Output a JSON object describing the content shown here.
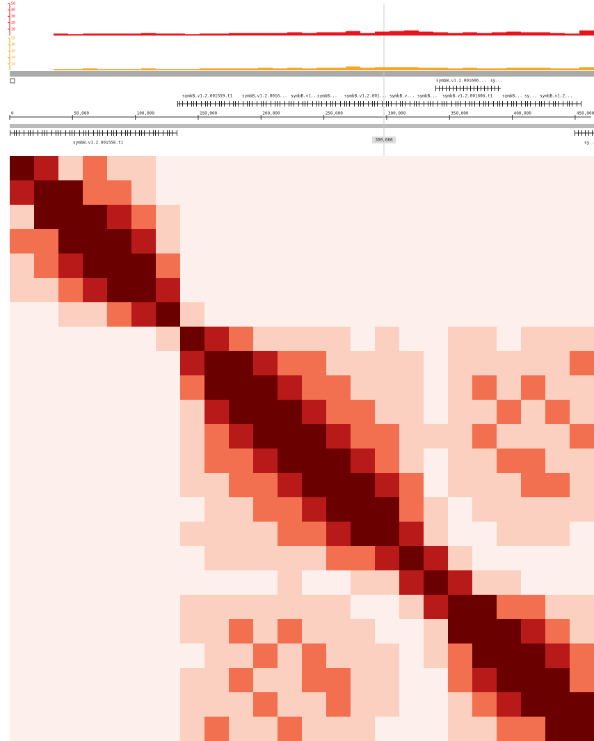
{
  "tracks": [
    {
      "name": "coverage-red",
      "color": "#e8141c",
      "ylim": [
        0,
        50
      ],
      "yticks": [
        50,
        40,
        30,
        20,
        10
      ],
      "values": [
        0,
        0,
        0,
        3,
        2,
        3,
        3,
        3,
        3,
        4,
        3,
        3,
        2,
        3,
        3,
        4,
        4,
        4,
        4,
        5,
        4,
        5,
        5,
        7,
        4,
        6,
        7,
        8,
        6,
        5,
        4,
        5,
        4,
        5,
        6,
        5,
        5,
        4,
        3,
        8
      ]
    },
    {
      "name": "coverage-orange",
      "color": "#f5a623",
      "ylim": [
        0,
        50
      ],
      "yticks": [
        50,
        40,
        30,
        20,
        10
      ],
      "values": [
        0,
        0,
        0,
        2,
        2,
        3,
        2,
        2,
        2,
        3,
        2,
        2,
        2,
        3,
        3,
        3,
        3,
        4,
        3,
        4,
        3,
        4,
        4,
        6,
        4,
        5,
        5,
        5,
        4,
        4,
        3,
        4,
        3,
        3,
        4,
        4,
        4,
        3,
        3,
        5
      ]
    }
  ],
  "genes_top": [
    "symbB.v1.2.001606...",
    "sy..."
  ],
  "genes_mid": [
    "symbB.v1.2.001559.t1",
    "symbB.v1.2.0016...",
    "symbB.v1...",
    "symbB...",
    "symbB.v1.2.001...",
    "symbB.v...",
    "symbB...",
    "symbB.v1.2.001606.t1",
    "symbB...",
    "sy...",
    "symbB.v1.2..."
  ],
  "genes_bottom": [
    "symbB.v1.2.001558.t1",
    "sy..."
  ],
  "cursor": "300,666",
  "ruler": {
    "xlim": [
      0,
      465000
    ],
    "xticks": [
      0,
      {
        "value": 50000,
        "label": "50,000"
      },
      {
        "value": 100000,
        "label": "100,000"
      },
      {
        "value": 150000,
        "label": "150,000"
      },
      {
        "value": 200000,
        "label": "200,000"
      },
      {
        "value": 250000,
        "label": "250,000"
      },
      {
        "value": 300000,
        "label": "300,000"
      },
      {
        "value": 350000,
        "label": "350,000"
      },
      {
        "value": 400000,
        "label": "400,000"
      },
      {
        "value": 450000,
        "label": "450,000"
      }
    ]
  },
  "heatmap": {
    "colors": [
      "#fdf0ec",
      "#fcd0c0",
      "#f2704f",
      "#b81a1a",
      "#6b0000"
    ],
    "matrix": [
      [
        4,
        3,
        1,
        2,
        1,
        1,
        0,
        0,
        0,
        0,
        0,
        0,
        0,
        0,
        0,
        0,
        0,
        0,
        0,
        0,
        0,
        0,
        0,
        0
      ],
      [
        3,
        4,
        4,
        2,
        2,
        1,
        0,
        0,
        0,
        0,
        0,
        0,
        0,
        0,
        0,
        0,
        0,
        0,
        0,
        0,
        0,
        0,
        0,
        0
      ],
      [
        1,
        4,
        4,
        4,
        3,
        2,
        1,
        0,
        0,
        0,
        0,
        0,
        0,
        0,
        0,
        0,
        0,
        0,
        0,
        0,
        0,
        0,
        0,
        0
      ],
      [
        2,
        2,
        4,
        4,
        4,
        3,
        1,
        0,
        0,
        0,
        0,
        0,
        0,
        0,
        0,
        0,
        0,
        0,
        0,
        0,
        0,
        0,
        0,
        0
      ],
      [
        1,
        2,
        3,
        4,
        4,
        4,
        2,
        0,
        0,
        0,
        0,
        0,
        0,
        0,
        0,
        0,
        0,
        0,
        0,
        0,
        0,
        0,
        0,
        0
      ],
      [
        1,
        1,
        2,
        3,
        4,
        4,
        3,
        0,
        0,
        0,
        0,
        0,
        0,
        0,
        0,
        0,
        0,
        0,
        0,
        0,
        0,
        0,
        0,
        0
      ],
      [
        0,
        0,
        1,
        1,
        2,
        3,
        4,
        1,
        0,
        0,
        0,
        0,
        0,
        0,
        0,
        0,
        0,
        0,
        0,
        0,
        0,
        0,
        0,
        0
      ],
      [
        0,
        0,
        0,
        0,
        0,
        0,
        1,
        4,
        3,
        2,
        1,
        1,
        1,
        1,
        0,
        1,
        0,
        0,
        1,
        1,
        0,
        1,
        1,
        1
      ],
      [
        0,
        0,
        0,
        0,
        0,
        0,
        0,
        3,
        4,
        4,
        3,
        2,
        2,
        1,
        1,
        1,
        1,
        0,
        1,
        1,
        1,
        1,
        1,
        2
      ],
      [
        0,
        0,
        0,
        0,
        0,
        0,
        0,
        2,
        4,
        4,
        4,
        3,
        2,
        2,
        1,
        1,
        1,
        0,
        1,
        2,
        1,
        2,
        1,
        1
      ],
      [
        0,
        0,
        0,
        0,
        0,
        0,
        0,
        1,
        3,
        4,
        4,
        4,
        3,
        2,
        2,
        1,
        1,
        0,
        1,
        1,
        2,
        1,
        2,
        1
      ],
      [
        0,
        0,
        0,
        0,
        0,
        0,
        0,
        1,
        2,
        3,
        4,
        4,
        4,
        3,
        2,
        2,
        1,
        1,
        1,
        2,
        1,
        1,
        1,
        2
      ],
      [
        0,
        0,
        0,
        0,
        0,
        0,
        0,
        1,
        2,
        2,
        3,
        4,
        4,
        4,
        3,
        2,
        1,
        0,
        1,
        1,
        2,
        2,
        1,
        1
      ],
      [
        0,
        0,
        0,
        0,
        0,
        0,
        0,
        1,
        1,
        2,
        2,
        3,
        4,
        4,
        4,
        3,
        2,
        0,
        1,
        1,
        1,
        2,
        2,
        1
      ],
      [
        0,
        0,
        0,
        0,
        0,
        0,
        0,
        0,
        1,
        1,
        2,
        2,
        3,
        4,
        4,
        4,
        2,
        1,
        0,
        1,
        1,
        1,
        1,
        1
      ],
      [
        0,
        0,
        0,
        0,
        0,
        0,
        0,
        1,
        1,
        1,
        1,
        2,
        2,
        3,
        4,
        4,
        3,
        1,
        0,
        0,
        1,
        1,
        1,
        0
      ],
      [
        0,
        0,
        0,
        0,
        0,
        0,
        0,
        0,
        1,
        1,
        1,
        1,
        1,
        2,
        2,
        3,
        4,
        3,
        1,
        0,
        0,
        0,
        0,
        0
      ],
      [
        0,
        0,
        0,
        0,
        0,
        0,
        0,
        0,
        0,
        0,
        0,
        1,
        0,
        0,
        1,
        1,
        3,
        4,
        3,
        1,
        1,
        0,
        0,
        0
      ],
      [
        0,
        0,
        0,
        0,
        0,
        0,
        0,
        1,
        1,
        1,
        1,
        1,
        1,
        1,
        0,
        0,
        1,
        3,
        4,
        4,
        2,
        2,
        1,
        1
      ],
      [
        0,
        0,
        0,
        0,
        0,
        0,
        0,
        1,
        1,
        2,
        1,
        2,
        1,
        1,
        1,
        0,
        0,
        1,
        4,
        4,
        4,
        3,
        2,
        1
      ],
      [
        0,
        0,
        0,
        0,
        0,
        0,
        0,
        0,
        1,
        1,
        2,
        1,
        2,
        1,
        1,
        1,
        0,
        1,
        2,
        4,
        4,
        4,
        3,
        2
      ],
      [
        0,
        0,
        0,
        0,
        0,
        0,
        0,
        1,
        1,
        2,
        1,
        1,
        2,
        2,
        1,
        1,
        0,
        0,
        2,
        3,
        4,
        4,
        4,
        2
      ],
      [
        0,
        0,
        0,
        0,
        0,
        0,
        0,
        1,
        1,
        1,
        2,
        1,
        1,
        2,
        1,
        1,
        0,
        0,
        1,
        2,
        3,
        4,
        4,
        4
      ],
      [
        0,
        0,
        0,
        0,
        0,
        0,
        0,
        1,
        2,
        1,
        1,
        2,
        1,
        1,
        1,
        0,
        0,
        0,
        1,
        1,
        2,
        2,
        4,
        4
      ]
    ]
  }
}
